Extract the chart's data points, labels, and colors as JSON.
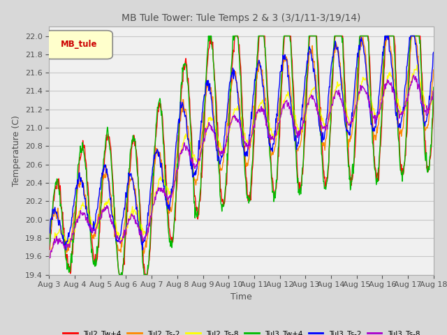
{
  "title": "MB Tule Tower: Tule Temps 2 & 3 (3/1/11-3/19/14)",
  "xlabel": "Time",
  "ylabel": "Temperature (C)",
  "ylim": [
    19.4,
    22.1
  ],
  "yticks": [
    19.4,
    19.6,
    19.8,
    20.0,
    20.2,
    20.4,
    20.6,
    20.8,
    21.0,
    21.2,
    21.4,
    21.6,
    21.8,
    22.0
  ],
  "xtick_labels": [
    "Aug 3",
    "Aug 4",
    "Aug 5",
    "Aug 6",
    "Aug 7",
    "Aug 8",
    "Aug 9",
    "Aug 10",
    "Aug 11",
    "Aug 12",
    "Aug 13",
    "Aug 14",
    "Aug 15",
    "Aug 16",
    "Aug 17",
    "Aug 18"
  ],
  "legend_label": "MB_tule",
  "series_labels": [
    "Tul2_Tw+4",
    "Tul2_Ts-2",
    "Tul2_Ts-8",
    "Tul3_Tw+4",
    "Tul3_Ts-2",
    "Tul3_Ts-8"
  ],
  "series_colors": [
    "#ff0000",
    "#ff8800",
    "#ffff00",
    "#00bb00",
    "#0000ff",
    "#aa00cc"
  ],
  "background_color": "#d8d8d8",
  "plot_bg_color": "#f0f0f0",
  "grid_color": "#c8c8c8",
  "title_color": "#505050",
  "n_points": 800
}
